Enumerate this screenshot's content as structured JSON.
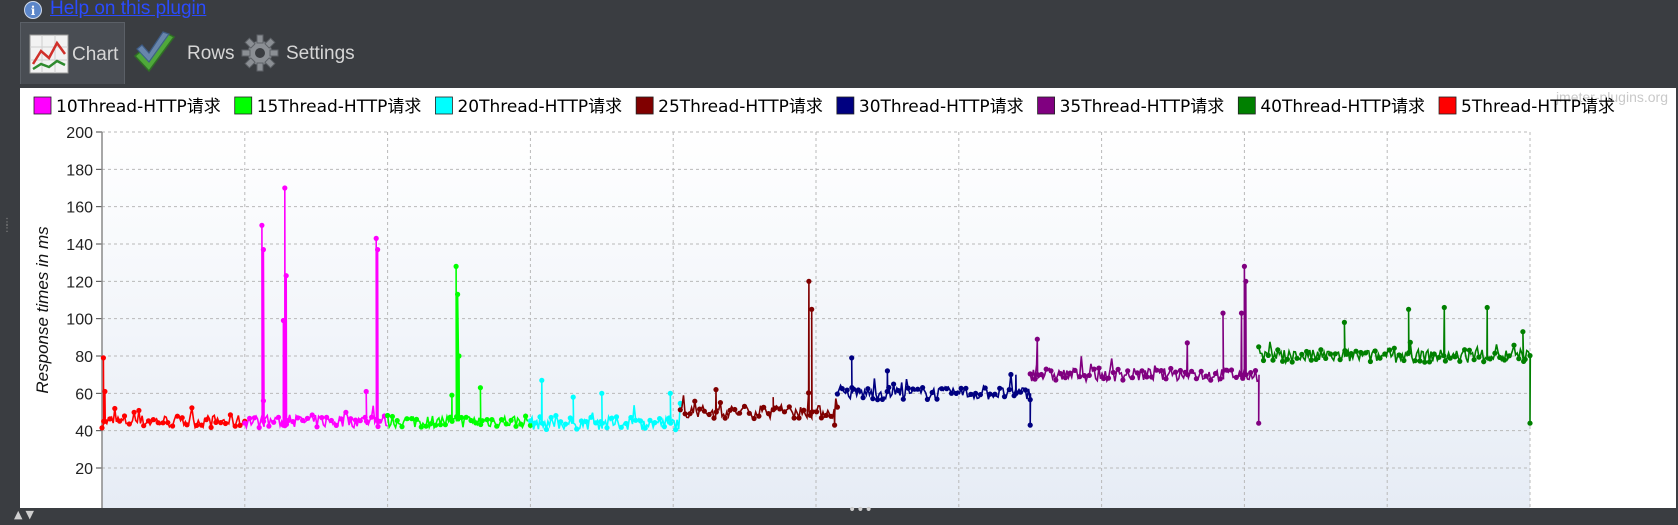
{
  "help": {
    "link_text": "Help on this plugin",
    "icon": "info-icon"
  },
  "tabs": [
    {
      "label": "Chart",
      "icon": "line-chart-icon",
      "selected": true
    },
    {
      "label": "Rows",
      "icon": "checkmark-icon",
      "selected": false
    },
    {
      "label": "Settings",
      "icon": "gear-icon",
      "selected": false
    }
  ],
  "watermark": "jmeter-plugins.org",
  "colors": {
    "10Thread-HTTP请求": "#ff00ff",
    "15Thread-HTTP请求": "#00ff00",
    "20Thread-HTTP请求": "#00ffff",
    "25Thread-HTTP请求": "#800000",
    "30Thread-HTTP请求": "#000080",
    "35Thread-HTTP请求": "#800080",
    "40Thread-HTTP请求": "#008000",
    "5Thread-HTTP请求": "#ff0000"
  },
  "chart_data": {
    "type": "line",
    "title": "",
    "xlabel": "",
    "ylabel": "Response times in ms",
    "ylim": [
      20,
      200
    ],
    "yticks": [
      20,
      40,
      60,
      80,
      100,
      120,
      140,
      160,
      180,
      200
    ],
    "xlim": [
      0,
      10
    ],
    "grid": true,
    "legend_position": "top",
    "series": [
      {
        "name": "10Thread-HTTP请求",
        "x_range": [
          1,
          2
        ],
        "baseline": 45,
        "spikes": [
          [
            1.12,
            150
          ],
          [
            1.13,
            137
          ],
          [
            1.28,
            170
          ],
          [
            1.29,
            123
          ],
          [
            1.27,
            99
          ],
          [
            1.92,
            143
          ],
          [
            1.93,
            137
          ],
          [
            1.85,
            61
          ],
          [
            1.13,
            56
          ]
        ]
      },
      {
        "name": "15Thread-HTTP请求",
        "x_range": [
          2,
          3
        ],
        "baseline": 45,
        "spikes": [
          [
            2.48,
            128
          ],
          [
            2.49,
            113
          ],
          [
            2.5,
            80
          ],
          [
            2.65,
            63
          ],
          [
            2.45,
            59
          ]
        ]
      },
      {
        "name": "20Thread-HTTP请求",
        "x_range": [
          3,
          4.05
        ],
        "baseline": 44,
        "spikes": [
          [
            3.08,
            67
          ],
          [
            3.5,
            60
          ],
          [
            3.98,
            60
          ],
          [
            3.3,
            58
          ]
        ]
      },
      {
        "name": "25Thread-HTTP请求",
        "x_range": [
          4.05,
          5.15
        ],
        "baseline": 50,
        "spikes": [
          [
            4.95,
            120
          ],
          [
            4.97,
            105
          ],
          [
            4.3,
            62
          ],
          [
            4.7,
            58
          ],
          [
            5.13,
            43
          ]
        ]
      },
      {
        "name": "30Thread-HTTP请求",
        "x_range": [
          5.15,
          6.5
        ],
        "baseline": 60,
        "spikes": [
          [
            5.25,
            79
          ],
          [
            5.5,
            72
          ],
          [
            6.4,
            70
          ],
          [
            6.5,
            43
          ]
        ]
      },
      {
        "name": "35Thread-HTTP请求",
        "x_range": [
          6.5,
          8.1
        ],
        "baseline": 70,
        "spikes": [
          [
            8.0,
            128
          ],
          [
            8.01,
            120
          ],
          [
            7.85,
            103
          ],
          [
            7.98,
            103
          ],
          [
            6.55,
            89
          ],
          [
            7.6,
            87
          ],
          [
            8.1,
            44
          ]
        ]
      },
      {
        "name": "40Thread-HTTP请求",
        "x_range": [
          8.1,
          10
        ],
        "baseline": 80,
        "spikes": [
          [
            9.4,
            106
          ],
          [
            9.15,
            105
          ],
          [
            9.7,
            106
          ],
          [
            8.7,
            98
          ],
          [
            9.95,
            93
          ],
          [
            10.0,
            44
          ]
        ]
      },
      {
        "name": "5Thread-HTTP请求",
        "x_range": [
          0,
          1
        ],
        "baseline": 45,
        "spikes": [
          [
            0.01,
            79
          ],
          [
            0.02,
            61
          ]
        ]
      }
    ]
  }
}
